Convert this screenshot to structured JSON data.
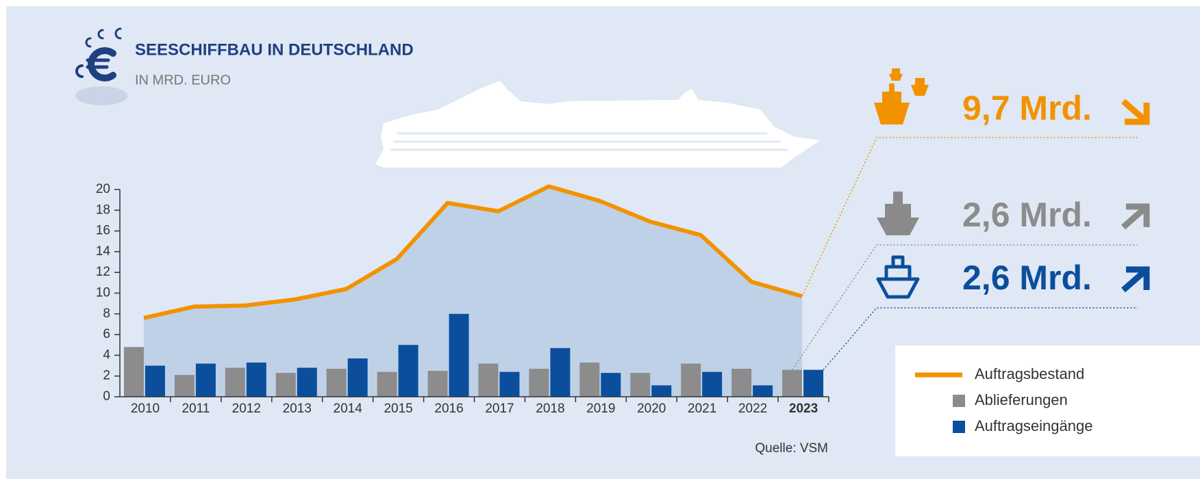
{
  "chart_data": {
    "type": "combo",
    "title": "SEESCHIFFBAU IN DEUTSCHLAND",
    "subtitle": "IN MRD. EURO",
    "source": "Quelle: VSM",
    "categories": [
      "2010",
      "2011",
      "2012",
      "2013",
      "2014",
      "2015",
      "2016",
      "2017",
      "2018",
      "2019",
      "2020",
      "2021",
      "2022",
      "2023"
    ],
    "series": [
      {
        "name": "Auftragsbestand",
        "type": "line",
        "color": "#f39200",
        "area_color": "#bfd1e7",
        "values": [
          7.6,
          8.7,
          8.8,
          9.4,
          10.4,
          13.3,
          18.7,
          17.9,
          20.3,
          18.9,
          16.9,
          15.6,
          11.1,
          9.7
        ]
      },
      {
        "name": "Ablieferungen",
        "type": "bar",
        "color": "#8c8c8c",
        "values": [
          4.8,
          2.1,
          2.8,
          2.3,
          2.7,
          2.4,
          2.5,
          3.2,
          2.7,
          3.3,
          2.3,
          3.2,
          2.7,
          2.6
        ]
      },
      {
        "name": "Auftragseingänge",
        "type": "bar",
        "color": "#0b4f9c",
        "values": [
          3.0,
          3.2,
          3.3,
          2.8,
          3.7,
          5.0,
          8.0,
          2.4,
          4.7,
          2.3,
          1.1,
          2.4,
          1.1,
          2.6
        ]
      }
    ],
    "annotations": [
      "9,7 Mrd.",
      "2,6 Mrd.",
      "2,6 Mrd."
    ],
    "ylim": [
      0,
      20
    ],
    "yticks": [
      0,
      2,
      4,
      6,
      8,
      10,
      12,
      14,
      16,
      18,
      20
    ],
    "grid": false,
    "legend": "right"
  }
}
